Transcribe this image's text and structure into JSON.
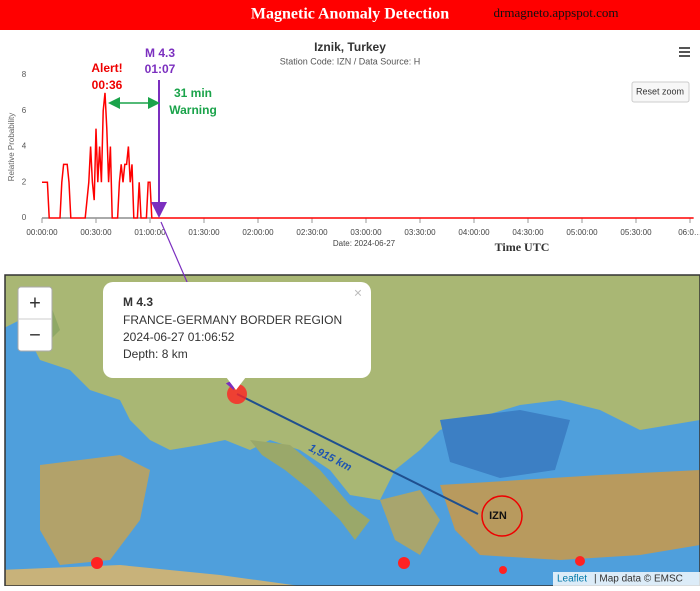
{
  "header": {
    "title": "Magnetic Anomaly Detection",
    "site": "drmagneto.appspot.com"
  },
  "chart_data": {
    "type": "line",
    "title": "Iznik, Turkey",
    "subtitle": "Station Code: IZN / Data Source: H",
    "y_label": "Relative Probability",
    "x_label": "Time UTC",
    "date_label": "Date: 2024-06-27",
    "reset_button": "Reset zoom",
    "x": [
      0,
      3,
      4,
      10,
      11,
      12,
      14,
      15,
      16,
      24,
      25,
      26,
      27,
      28,
      29,
      30,
      31,
      32,
      33,
      34,
      35,
      36,
      37,
      38,
      39,
      42,
      43,
      44,
      45,
      46,
      47,
      48,
      49,
      50,
      51,
      53,
      54,
      55,
      58,
      59,
      60,
      61,
      362
    ],
    "series": [
      {
        "name": "Relative Probability",
        "color": "#ff0000",
        "values": [
          2,
          2,
          0,
          0,
          2,
          3,
          3,
          2,
          0,
          0,
          1,
          2,
          4,
          2,
          1,
          5,
          2,
          4,
          2,
          6,
          7,
          5,
          2,
          4,
          0,
          0,
          2,
          3,
          2,
          3,
          3,
          4,
          2,
          3,
          0,
          0,
          2,
          0,
          0,
          2,
          2,
          0,
          0
        ]
      }
    ],
    "xlim": [
      0,
      362
    ],
    "xticks": [
      {
        "value": 0,
        "label": "00:00:00"
      },
      {
        "value": 30,
        "label": "00:30:00"
      },
      {
        "value": 60,
        "label": "01:00:00"
      },
      {
        "value": 90,
        "label": "01:30:00"
      },
      {
        "value": 120,
        "label": "02:00:00"
      },
      {
        "value": 150,
        "label": "02:30:00"
      },
      {
        "value": 180,
        "label": "03:00:00"
      },
      {
        "value": 210,
        "label": "03:30:00"
      },
      {
        "value": 240,
        "label": "04:00:00"
      },
      {
        "value": 270,
        "label": "04:30:00"
      },
      {
        "value": 300,
        "label": "05:00:00"
      },
      {
        "value": 330,
        "label": "05:30:00"
      },
      {
        "value": 360,
        "label": "06:0…"
      }
    ],
    "ylim": [
      0,
      8
    ],
    "yticks": [
      0,
      2,
      4,
      6,
      8
    ],
    "annotations": {
      "alert": [
        "Alert!",
        "00:36"
      ],
      "quake": [
        "M 4.3",
        "01:07"
      ],
      "warning": [
        "31 min",
        "Warning"
      ]
    }
  },
  "map": {
    "zoom_in": "+",
    "zoom_out": "−",
    "popup": {
      "close": "×",
      "title": "M 4.3",
      "region": "FRANCE-GERMANY BORDER REGION",
      "time": "2024-06-27 01:06:52",
      "depth": "Depth: 8 km"
    },
    "distance_label": "1,915 km",
    "station_label": "IZN",
    "attribution": {
      "link": "Leaflet",
      "text": "| Map data © EMSC"
    }
  }
}
